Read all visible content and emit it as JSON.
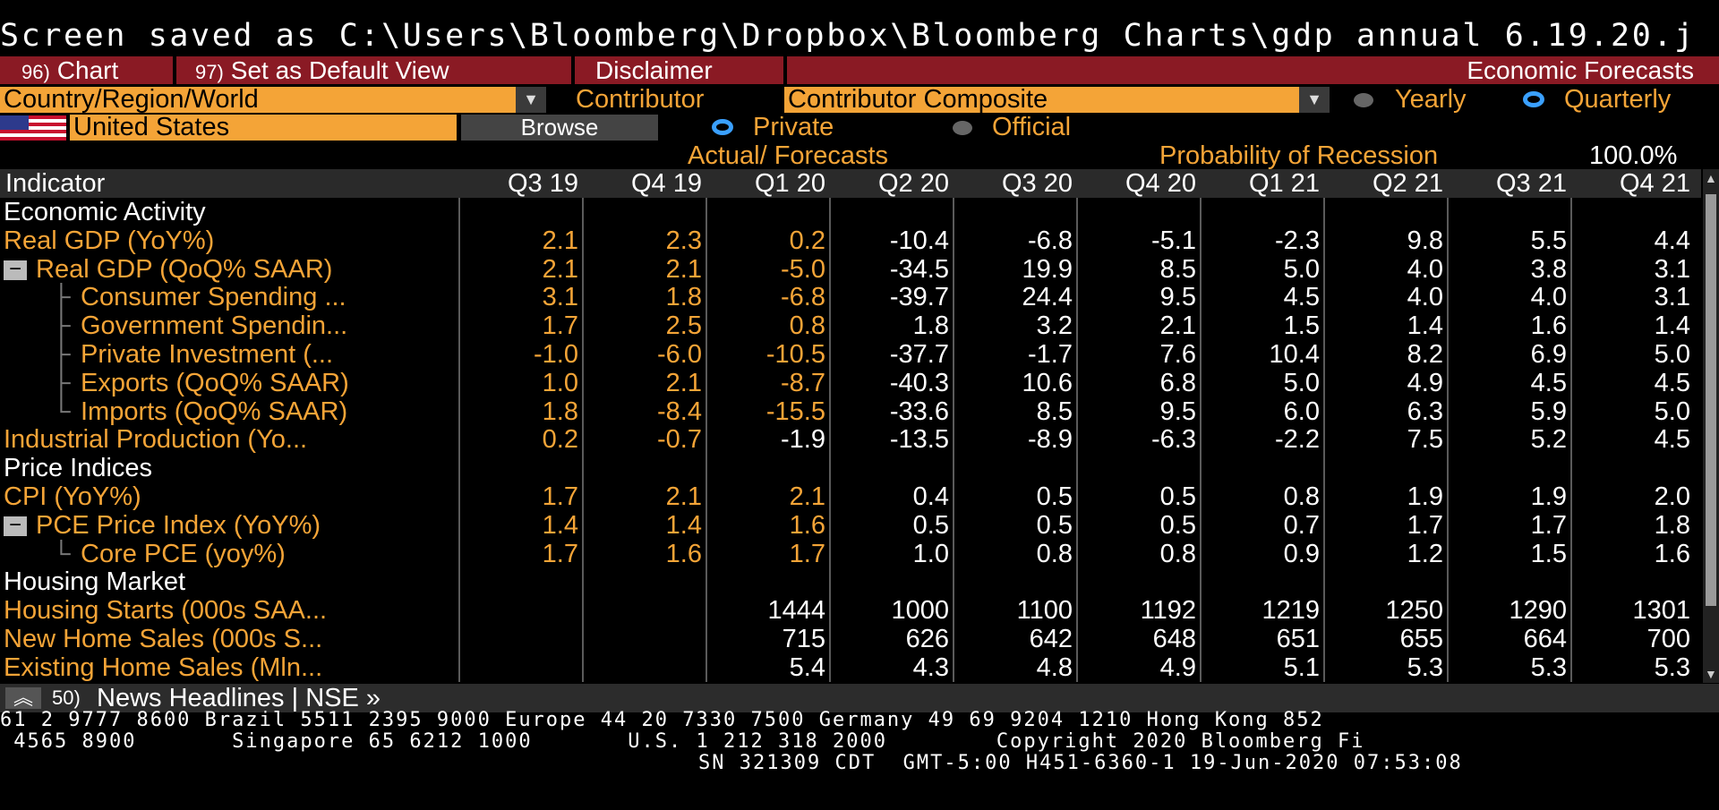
{
  "window": {
    "save_message": "Screen saved as C:\\Users\\Bloomberg\\Dropbox\\Bloomberg Charts\\gdp annual 6.19.20.j"
  },
  "toolbar": {
    "chart_num": "96)",
    "chart_label": "Chart",
    "default_num": "97)",
    "default_label": "Set as Default View",
    "disclaimer_label": "Disclaimer",
    "title": "Economic Forecasts"
  },
  "filters": {
    "region_field": "Country/Region/World",
    "contributor_label": "Contributor",
    "contributor_field": "Contributor Composite",
    "yearly_label": "Yearly",
    "quarterly_label": "Quarterly",
    "country_field": "United States",
    "browse_label": "Browse",
    "private_label": "Private",
    "official_label": "Official",
    "selected_period": "Quarterly",
    "selected_contributor_type": "Private"
  },
  "summary": {
    "actual_forecasts": "Actual/ Forecasts",
    "recession_label": "Probability of Recession",
    "recession_value": "100.0%"
  },
  "table": {
    "indicator_header": "Indicator",
    "columns": [
      "Q3 19",
      "Q4 19",
      "Q1 20",
      "Q2 20",
      "Q3 20",
      "Q4 20",
      "Q1 21",
      "Q2 21",
      "Q3 21",
      "Q4 21"
    ],
    "rows": [
      {
        "type": "section",
        "name": "Economic Activity"
      },
      {
        "type": "data",
        "name": "Real GDP (YoY%)",
        "indent": 0,
        "values": [
          "2.1",
          "2.3",
          "0.2",
          "-10.4",
          "-6.8",
          "-5.1",
          "-2.3",
          "9.8",
          "5.5",
          "4.4"
        ],
        "actual": 3
      },
      {
        "type": "data",
        "name": "Real GDP (QoQ% SAAR)",
        "indent": 0,
        "expander": "−",
        "values": [
          "2.1",
          "2.1",
          "-5.0",
          "-34.5",
          "19.9",
          "8.5",
          "5.0",
          "4.0",
          "3.8",
          "3.1"
        ],
        "actual": 3
      },
      {
        "type": "data",
        "name": "Consumer Spending ...",
        "indent": 1,
        "values": [
          "3.1",
          "1.8",
          "-6.8",
          "-39.7",
          "24.4",
          "9.5",
          "4.5",
          "4.0",
          "4.0",
          "3.1"
        ],
        "actual": 3
      },
      {
        "type": "data",
        "name": "Government Spendin...",
        "indent": 1,
        "values": [
          "1.7",
          "2.5",
          "0.8",
          "1.8",
          "3.2",
          "2.1",
          "1.5",
          "1.4",
          "1.6",
          "1.4"
        ],
        "actual": 3
      },
      {
        "type": "data",
        "name": "Private Investment (...",
        "indent": 1,
        "values": [
          "-1.0",
          "-6.0",
          "-10.5",
          "-37.7",
          "-1.7",
          "7.6",
          "10.4",
          "8.2",
          "6.9",
          "5.0"
        ],
        "actual": 3
      },
      {
        "type": "data",
        "name": "Exports (QoQ% SAAR)",
        "indent": 1,
        "values": [
          "1.0",
          "2.1",
          "-8.7",
          "-40.3",
          "10.6",
          "6.8",
          "5.0",
          "4.9",
          "4.5",
          "4.5"
        ],
        "actual": 3
      },
      {
        "type": "data",
        "name": "Imports (QoQ% SAAR)",
        "indent": 1,
        "last": true,
        "values": [
          "1.8",
          "-8.4",
          "-15.5",
          "-33.6",
          "8.5",
          "9.5",
          "6.0",
          "6.3",
          "5.9",
          "5.0"
        ],
        "actual": 3
      },
      {
        "type": "data",
        "name": "Industrial Production (Yo...",
        "indent": 0,
        "values": [
          "0.2",
          "-0.7",
          "-1.9",
          "-13.5",
          "-8.9",
          "-6.3",
          "-2.2",
          "7.5",
          "5.2",
          "4.5"
        ],
        "actual": 2
      },
      {
        "type": "section",
        "name": "Price Indices"
      },
      {
        "type": "data",
        "name": "CPI (YoY%)",
        "indent": 0,
        "values": [
          "1.7",
          "2.1",
          "2.1",
          "0.4",
          "0.5",
          "0.5",
          "0.8",
          "1.9",
          "1.9",
          "2.0"
        ],
        "actual": 3
      },
      {
        "type": "data",
        "name": "PCE Price Index (YoY%)",
        "indent": 0,
        "expander": "−",
        "values": [
          "1.4",
          "1.4",
          "1.6",
          "0.5",
          "0.5",
          "0.5",
          "0.7",
          "1.7",
          "1.7",
          "1.8"
        ],
        "actual": 3
      },
      {
        "type": "data",
        "name": "Core PCE (yoy%)",
        "indent": 1,
        "last": true,
        "values": [
          "1.7",
          "1.6",
          "1.7",
          "1.0",
          "0.8",
          "0.8",
          "0.9",
          "1.2",
          "1.5",
          "1.6"
        ],
        "actual": 3
      },
      {
        "type": "section",
        "name": "Housing Market"
      },
      {
        "type": "data",
        "name": "Housing Starts (000s SAA...",
        "indent": 0,
        "values": [
          "",
          "",
          "1444",
          "1000",
          "1100",
          "1192",
          "1219",
          "1250",
          "1290",
          "1301"
        ],
        "actual": 0
      },
      {
        "type": "data",
        "name": "New Home Sales (000s S...",
        "indent": 0,
        "values": [
          "",
          "",
          "715",
          "626",
          "642",
          "648",
          "651",
          "655",
          "664",
          "700"
        ],
        "actual": 0
      },
      {
        "type": "data",
        "name": "Existing Home Sales (Mln...",
        "indent": 0,
        "values": [
          "",
          "",
          "5.4",
          "4.3",
          "4.8",
          "4.9",
          "5.1",
          "5.3",
          "5.3",
          "5.3"
        ],
        "actual": 0
      }
    ]
  },
  "news": {
    "num": "50)",
    "label": "News Headlines | NSE »"
  },
  "footer": {
    "line1": "61 2 9777 8600 Brazil 5511 2395 9000 Europe 44 20 7330 7500 Germany 49 69 9204 1210 Hong Kong 852",
    "line2": " 4565 8900       Singapore 65 6212 1000       U.S. 1 212 318 2000        Copyright 2020 Bloomberg Fi",
    "line3": "SN 321309 CDT  GMT-5:00 H451-6360-1 19-Jun-2020 07:53:08"
  },
  "colors": {
    "accent": "#f4a437",
    "toolbar": "#8a1a24",
    "radio_on": "#3aa0ff"
  }
}
